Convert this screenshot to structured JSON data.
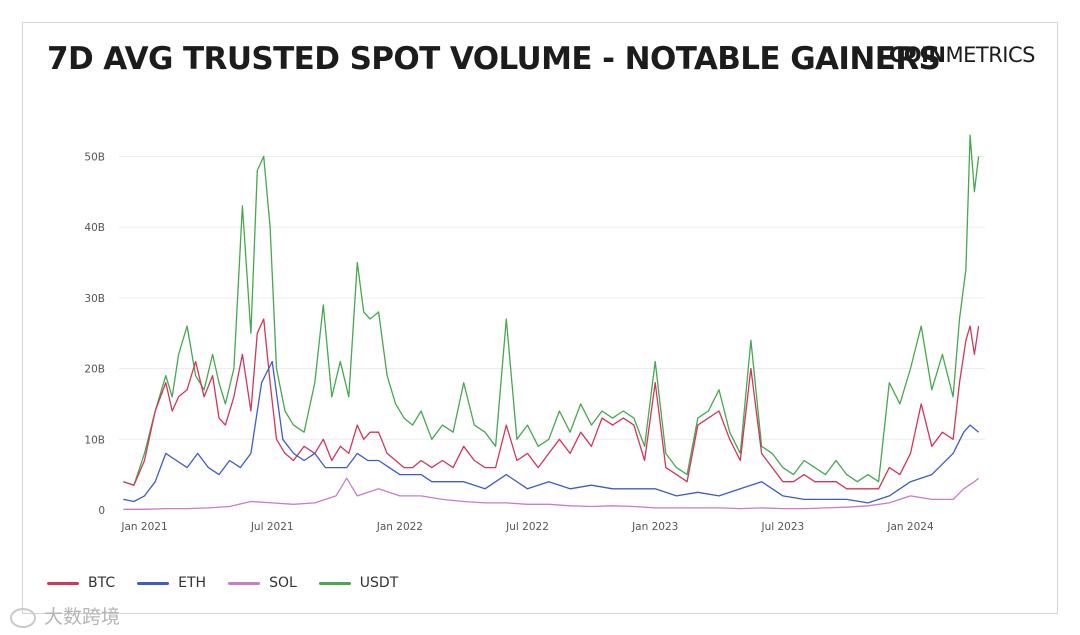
{
  "header": {
    "title": "7D AVG TRUSTED SPOT VOLUME - NOTABLE GAINERS",
    "logo_bold": "COIN",
    "logo_light": "METRICS"
  },
  "watermark": {
    "text": "大数跨境"
  },
  "colors": {
    "BTC": "#d0375a",
    "ETH": "#3e5cc4",
    "SOL": "#c77dc9",
    "USDT": "#46a84f",
    "grid": "#ececec",
    "axis_text": "#555555"
  },
  "chart_data": {
    "type": "line",
    "title": "7D AVG TRUSTED SPOT VOLUME - NOTABLE GAINERS",
    "xlabel": "",
    "ylabel": "",
    "x_unit": "months since Jan 2021",
    "xlim": [
      -1.2,
      39.5
    ],
    "ylim": [
      0,
      55
    ],
    "yticks": [
      0,
      10,
      20,
      30,
      40,
      50
    ],
    "ytick_labels": [
      "0",
      "10B",
      "20B",
      "30B",
      "40B",
      "50B"
    ],
    "xticks": [
      0,
      6,
      12,
      18,
      24,
      30,
      36
    ],
    "xtick_labels": [
      "Jan 2021",
      "Jul 2021",
      "Jan 2022",
      "Jul 2022",
      "Jan 2023",
      "Jul 2023",
      "Jan 2024"
    ],
    "legend_position": "bottom-left",
    "series": [
      {
        "name": "USDT",
        "x": [
          -1.0,
          -0.5,
          0,
          0.5,
          1.0,
          1.3,
          1.6,
          2.0,
          2.4,
          2.8,
          3.2,
          3.5,
          3.8,
          4.2,
          4.6,
          5.0,
          5.3,
          5.6,
          5.9,
          6.2,
          6.6,
          7.0,
          7.5,
          8.0,
          8.4,
          8.8,
          9.2,
          9.6,
          10.0,
          10.3,
          10.6,
          11.0,
          11.4,
          11.8,
          12.2,
          12.6,
          13.0,
          13.5,
          14.0,
          14.5,
          15.0,
          15.5,
          16.0,
          16.5,
          17.0,
          17.5,
          18.0,
          18.5,
          19.0,
          19.5,
          20.0,
          20.5,
          21.0,
          21.5,
          22.0,
          22.5,
          23.0,
          23.5,
          24.0,
          24.5,
          25.0,
          25.5,
          26.0,
          26.5,
          27.0,
          27.5,
          28.0,
          28.5,
          29.0,
          29.5,
          30.0,
          30.5,
          31.0,
          31.5,
          32.0,
          32.5,
          33.0,
          33.5,
          34.0,
          34.5,
          35.0,
          35.5,
          36.0,
          36.5,
          37.0,
          37.5,
          38.0,
          38.3,
          38.6,
          38.8,
          39.0,
          39.2
        ],
        "values": [
          4,
          3.5,
          8,
          14,
          19,
          16,
          22,
          26,
          19,
          17,
          22,
          18,
          15,
          20,
          43,
          25,
          48,
          50,
          40,
          20,
          14,
          12,
          11,
          18,
          29,
          16,
          21,
          16,
          35,
          28,
          27,
          28,
          19,
          15,
          13,
          12,
          14,
          10,
          12,
          11,
          18,
          12,
          11,
          9,
          27,
          10,
          12,
          9,
          10,
          14,
          11,
          15,
          12,
          14,
          13,
          14,
          13,
          9,
          21,
          8,
          6,
          5,
          13,
          14,
          17,
          11,
          8,
          24,
          9,
          8,
          6,
          5,
          7,
          6,
          5,
          7,
          5,
          4,
          5,
          4,
          18,
          15,
          20,
          26,
          17,
          22,
          16,
          27,
          34,
          53,
          45,
          50
        ]
      },
      {
        "name": "BTC",
        "x": [
          -1.0,
          -0.5,
          0,
          0.5,
          1.0,
          1.3,
          1.6,
          2.0,
          2.4,
          2.8,
          3.2,
          3.5,
          3.8,
          4.2,
          4.6,
          5.0,
          5.3,
          5.6,
          5.9,
          6.2,
          6.6,
          7.0,
          7.5,
          8.0,
          8.4,
          8.8,
          9.2,
          9.6,
          10.0,
          10.3,
          10.6,
          11.0,
          11.4,
          11.8,
          12.2,
          12.6,
          13.0,
          13.5,
          14.0,
          14.5,
          15.0,
          15.5,
          16.0,
          16.5,
          17.0,
          17.5,
          18.0,
          18.5,
          19.0,
          19.5,
          20.0,
          20.5,
          21.0,
          21.5,
          22.0,
          22.5,
          23.0,
          23.5,
          24.0,
          24.5,
          25.0,
          25.5,
          26.0,
          26.5,
          27.0,
          27.5,
          28.0,
          28.5,
          29.0,
          29.5,
          30.0,
          30.5,
          31.0,
          31.5,
          32.0,
          32.5,
          33.0,
          33.5,
          34.0,
          34.5,
          35.0,
          35.5,
          36.0,
          36.5,
          37.0,
          37.5,
          38.0,
          38.3,
          38.6,
          38.8,
          39.0,
          39.2
        ],
        "values": [
          4,
          3.5,
          7,
          14,
          18,
          14,
          16,
          17,
          21,
          16,
          19,
          13,
          12,
          16,
          22,
          14,
          25,
          27,
          18,
          10,
          8,
          7,
          9,
          8,
          10,
          7,
          9,
          8,
          12,
          10,
          11,
          11,
          8,
          7,
          6,
          6,
          7,
          6,
          7,
          6,
          9,
          7,
          6,
          6,
          12,
          7,
          8,
          6,
          8,
          10,
          8,
          11,
          9,
          13,
          12,
          13,
          12,
          7,
          18,
          6,
          5,
          4,
          12,
          13,
          14,
          10,
          7,
          20,
          8,
          6,
          4,
          4,
          5,
          4,
          4,
          4,
          3,
          3,
          3,
          3,
          6,
          5,
          8,
          15,
          9,
          11,
          10,
          18,
          24,
          26,
          22,
          26
        ]
      },
      {
        "name": "ETH",
        "x": [
          -1.0,
          -0.5,
          0,
          0.5,
          1.0,
          1.5,
          2.0,
          2.5,
          3.0,
          3.5,
          4.0,
          4.5,
          5.0,
          5.5,
          6.0,
          6.5,
          7.0,
          7.5,
          8.0,
          8.5,
          9.0,
          9.5,
          10.0,
          10.5,
          11.0,
          11.5,
          12.0,
          12.5,
          13.0,
          13.5,
          14.0,
          15.0,
          16.0,
          17.0,
          18.0,
          19.0,
          20.0,
          21.0,
          22.0,
          23.0,
          24.0,
          25.0,
          26.0,
          27.0,
          28.0,
          29.0,
          30.0,
          31.0,
          32.0,
          33.0,
          34.0,
          35.0,
          36.0,
          37.0,
          38.0,
          38.5,
          38.8,
          39.2
        ],
        "values": [
          1.5,
          1.2,
          2,
          4,
          8,
          7,
          6,
          8,
          6,
          5,
          7,
          6,
          8,
          18,
          21,
          10,
          8,
          7,
          8,
          6,
          6,
          6,
          8,
          7,
          7,
          6,
          5,
          5,
          5,
          4,
          4,
          4,
          3,
          5,
          3,
          4,
          3,
          3.5,
          3,
          3,
          3,
          2,
          2.5,
          2,
          3,
          4,
          2,
          1.5,
          1.5,
          1.5,
          1,
          2,
          4,
          5,
          8,
          11,
          12,
          11
        ]
      },
      {
        "name": "SOL",
        "x": [
          -1.0,
          0,
          1,
          2,
          3,
          4,
          5,
          6,
          7,
          8,
          9,
          9.5,
          10,
          11,
          12,
          13,
          14,
          15,
          16,
          17,
          18,
          19,
          20,
          21,
          22,
          23,
          24,
          25,
          26,
          27,
          28,
          29,
          30,
          31,
          32,
          33,
          34,
          35,
          36,
          37,
          38,
          38.5,
          39.0,
          39.2
        ],
        "values": [
          0.1,
          0.1,
          0.2,
          0.2,
          0.3,
          0.5,
          1.2,
          1,
          0.8,
          1,
          2,
          4.5,
          2,
          3,
          2,
          2,
          1.5,
          1.2,
          1,
          1,
          0.8,
          0.8,
          0.6,
          0.5,
          0.6,
          0.5,
          0.3,
          0.3,
          0.3,
          0.3,
          0.2,
          0.3,
          0.2,
          0.2,
          0.3,
          0.4,
          0.6,
          1,
          2,
          1.5,
          1.5,
          3,
          4,
          4.5
        ]
      }
    ]
  },
  "legend": [
    {
      "label": "BTC"
    },
    {
      "label": "ETH"
    },
    {
      "label": "SOL"
    },
    {
      "label": "USDT"
    }
  ]
}
